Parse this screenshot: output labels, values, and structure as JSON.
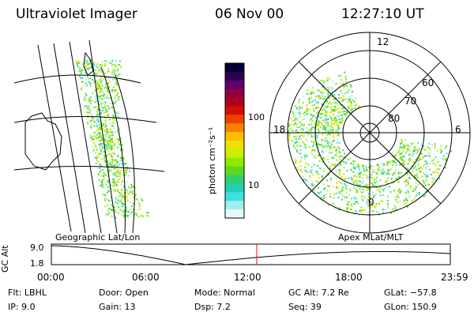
{
  "header": {
    "instrument": "Ultraviolet Imager",
    "date": "06 Nov 00",
    "time": "12:27:10 UT"
  },
  "left_panel": {
    "label": "Geographic Lat/Lon"
  },
  "colorbar": {
    "unit_label": "photon cm⁻²s⁻¹",
    "ticks": [
      "100",
      "10"
    ],
    "colors": [
      "#000030",
      "#300050",
      "#60006a",
      "#900040",
      "#b00020",
      "#d01000",
      "#f04000",
      "#f88000",
      "#fbbd00",
      "#f0e000",
      "#c8f000",
      "#90e800",
      "#60d820",
      "#30d070",
      "#20d0b0",
      "#40e0e0",
      "#a0f0f0",
      "#e8f8f8"
    ]
  },
  "right_panel": {
    "label": "Apex MLat/MLT",
    "mlt_labels": {
      "top": "12",
      "left": "18",
      "right": "6",
      "bottom": "0"
    },
    "lat_labels": [
      "60",
      "70",
      "80"
    ]
  },
  "timeline": {
    "ylabel": "GC Alt",
    "y_ticks": [
      "9.0",
      "1.8"
    ],
    "x_ticks": [
      "00:00",
      "06:00",
      "12:00",
      "18:00",
      "23:59"
    ],
    "marker_color": "#ff0000"
  },
  "info": {
    "filt": "Flt: LBHL",
    "ip": "IP:  9.0",
    "door": "Door: Open",
    "gain": "Gain: 13",
    "mode": "Mode: Normal",
    "dsp": "Dsp:     7.2",
    "gcalt": "GC Alt: 7.2 Re",
    "seq": "Seq: 39",
    "glat": "GLat: −57.8",
    "glon": "GLon: 150.9"
  }
}
